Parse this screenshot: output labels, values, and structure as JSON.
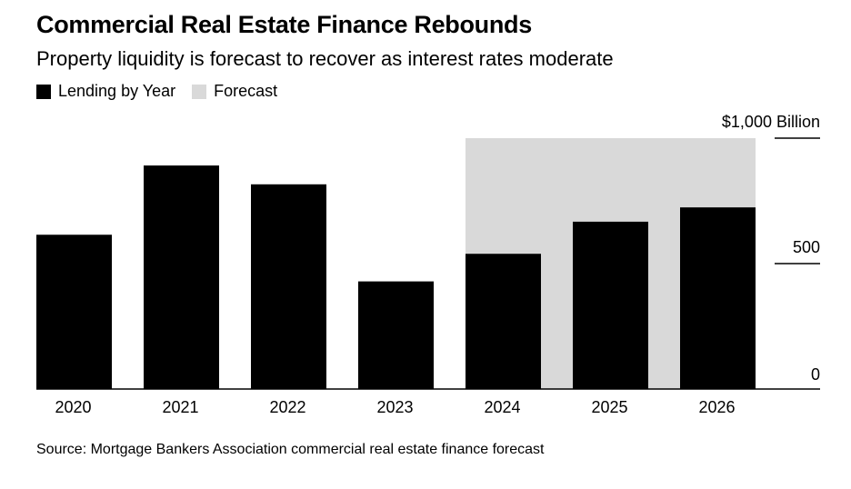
{
  "chart_data": {
    "type": "bar",
    "title": "Commercial Real Estate Finance Rebounds",
    "subtitle": "Property liquidity is forecast to recover as interest rates moderate",
    "categories": [
      "2020",
      "2021",
      "2022",
      "2023",
      "2024",
      "2025",
      "2026"
    ],
    "series": [
      {
        "name": "Lending by Year",
        "values": [
          615,
          891,
          816,
          429,
          539,
          667,
          724
        ]
      }
    ],
    "forecast": {
      "label": "Forecast",
      "start": "2024",
      "end": "2026"
    },
    "ylim": [
      0,
      1000
    ],
    "yticks": [
      {
        "value": 0,
        "label": "0"
      },
      {
        "value": 500,
        "label": "500"
      },
      {
        "value": 1000,
        "label": "$1,000 Billion"
      }
    ],
    "legend": [
      {
        "label": "Lending by Year",
        "color": "#000000"
      },
      {
        "label": "Forecast",
        "color": "#d9d9d9"
      }
    ],
    "y_axis_position": "right",
    "source": "Source: Mortgage Bankers Association commercial real estate finance forecast",
    "colors": {
      "bar": "#000000",
      "forecast_band": "#d9d9d9",
      "axis": "#000000"
    }
  }
}
